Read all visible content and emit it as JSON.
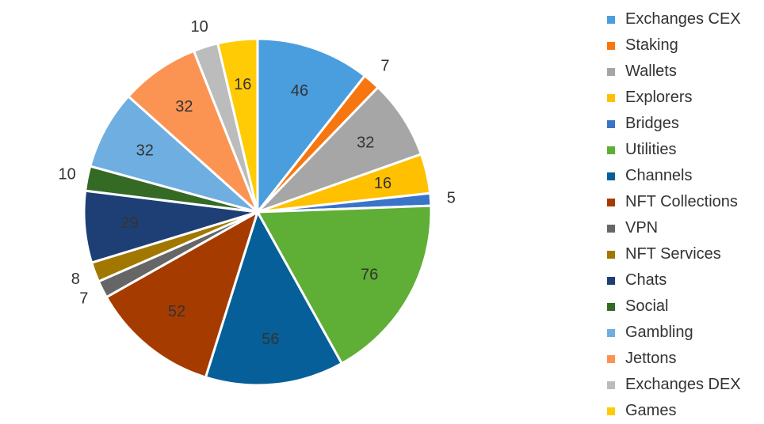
{
  "chart_data": {
    "type": "pie",
    "title": "",
    "legend_position": "right",
    "slices": [
      {
        "label": "Exchanges CEX",
        "value": 46,
        "color": "#4a9ede"
      },
      {
        "label": "Staking",
        "value": 7,
        "color": "#f7760f"
      },
      {
        "label": "Wallets",
        "value": 32,
        "color": "#a6a6a6"
      },
      {
        "label": "Explorers",
        "value": 16,
        "color": "#ffc000"
      },
      {
        "label": "Bridges",
        "value": 5,
        "color": "#3a74c9"
      },
      {
        "label": "Utilities",
        "value": 76,
        "color": "#5fae35"
      },
      {
        "label": "Channels",
        "value": 56,
        "color": "#065f98"
      },
      {
        "label": "NFT Collections",
        "value": 52,
        "color": "#a63b00"
      },
      {
        "label": "VPN",
        "value": 7,
        "color": "#666666"
      },
      {
        "label": "NFT Services",
        "value": 8,
        "color": "#a27700"
      },
      {
        "label": "Chats",
        "value": 29,
        "color": "#1e3f75"
      },
      {
        "label": "Social",
        "value": 10,
        "color": "#356a25"
      },
      {
        "label": "Gambling",
        "value": 32,
        "color": "#6faee0"
      },
      {
        "label": "Jettons",
        "value": 32,
        "color": "#fb9453"
      },
      {
        "label": "Exchanges DEX",
        "value": 10,
        "color": "#bcbcbc"
      },
      {
        "label": "Games",
        "value": 16,
        "color": "#ffcb05"
      }
    ]
  }
}
